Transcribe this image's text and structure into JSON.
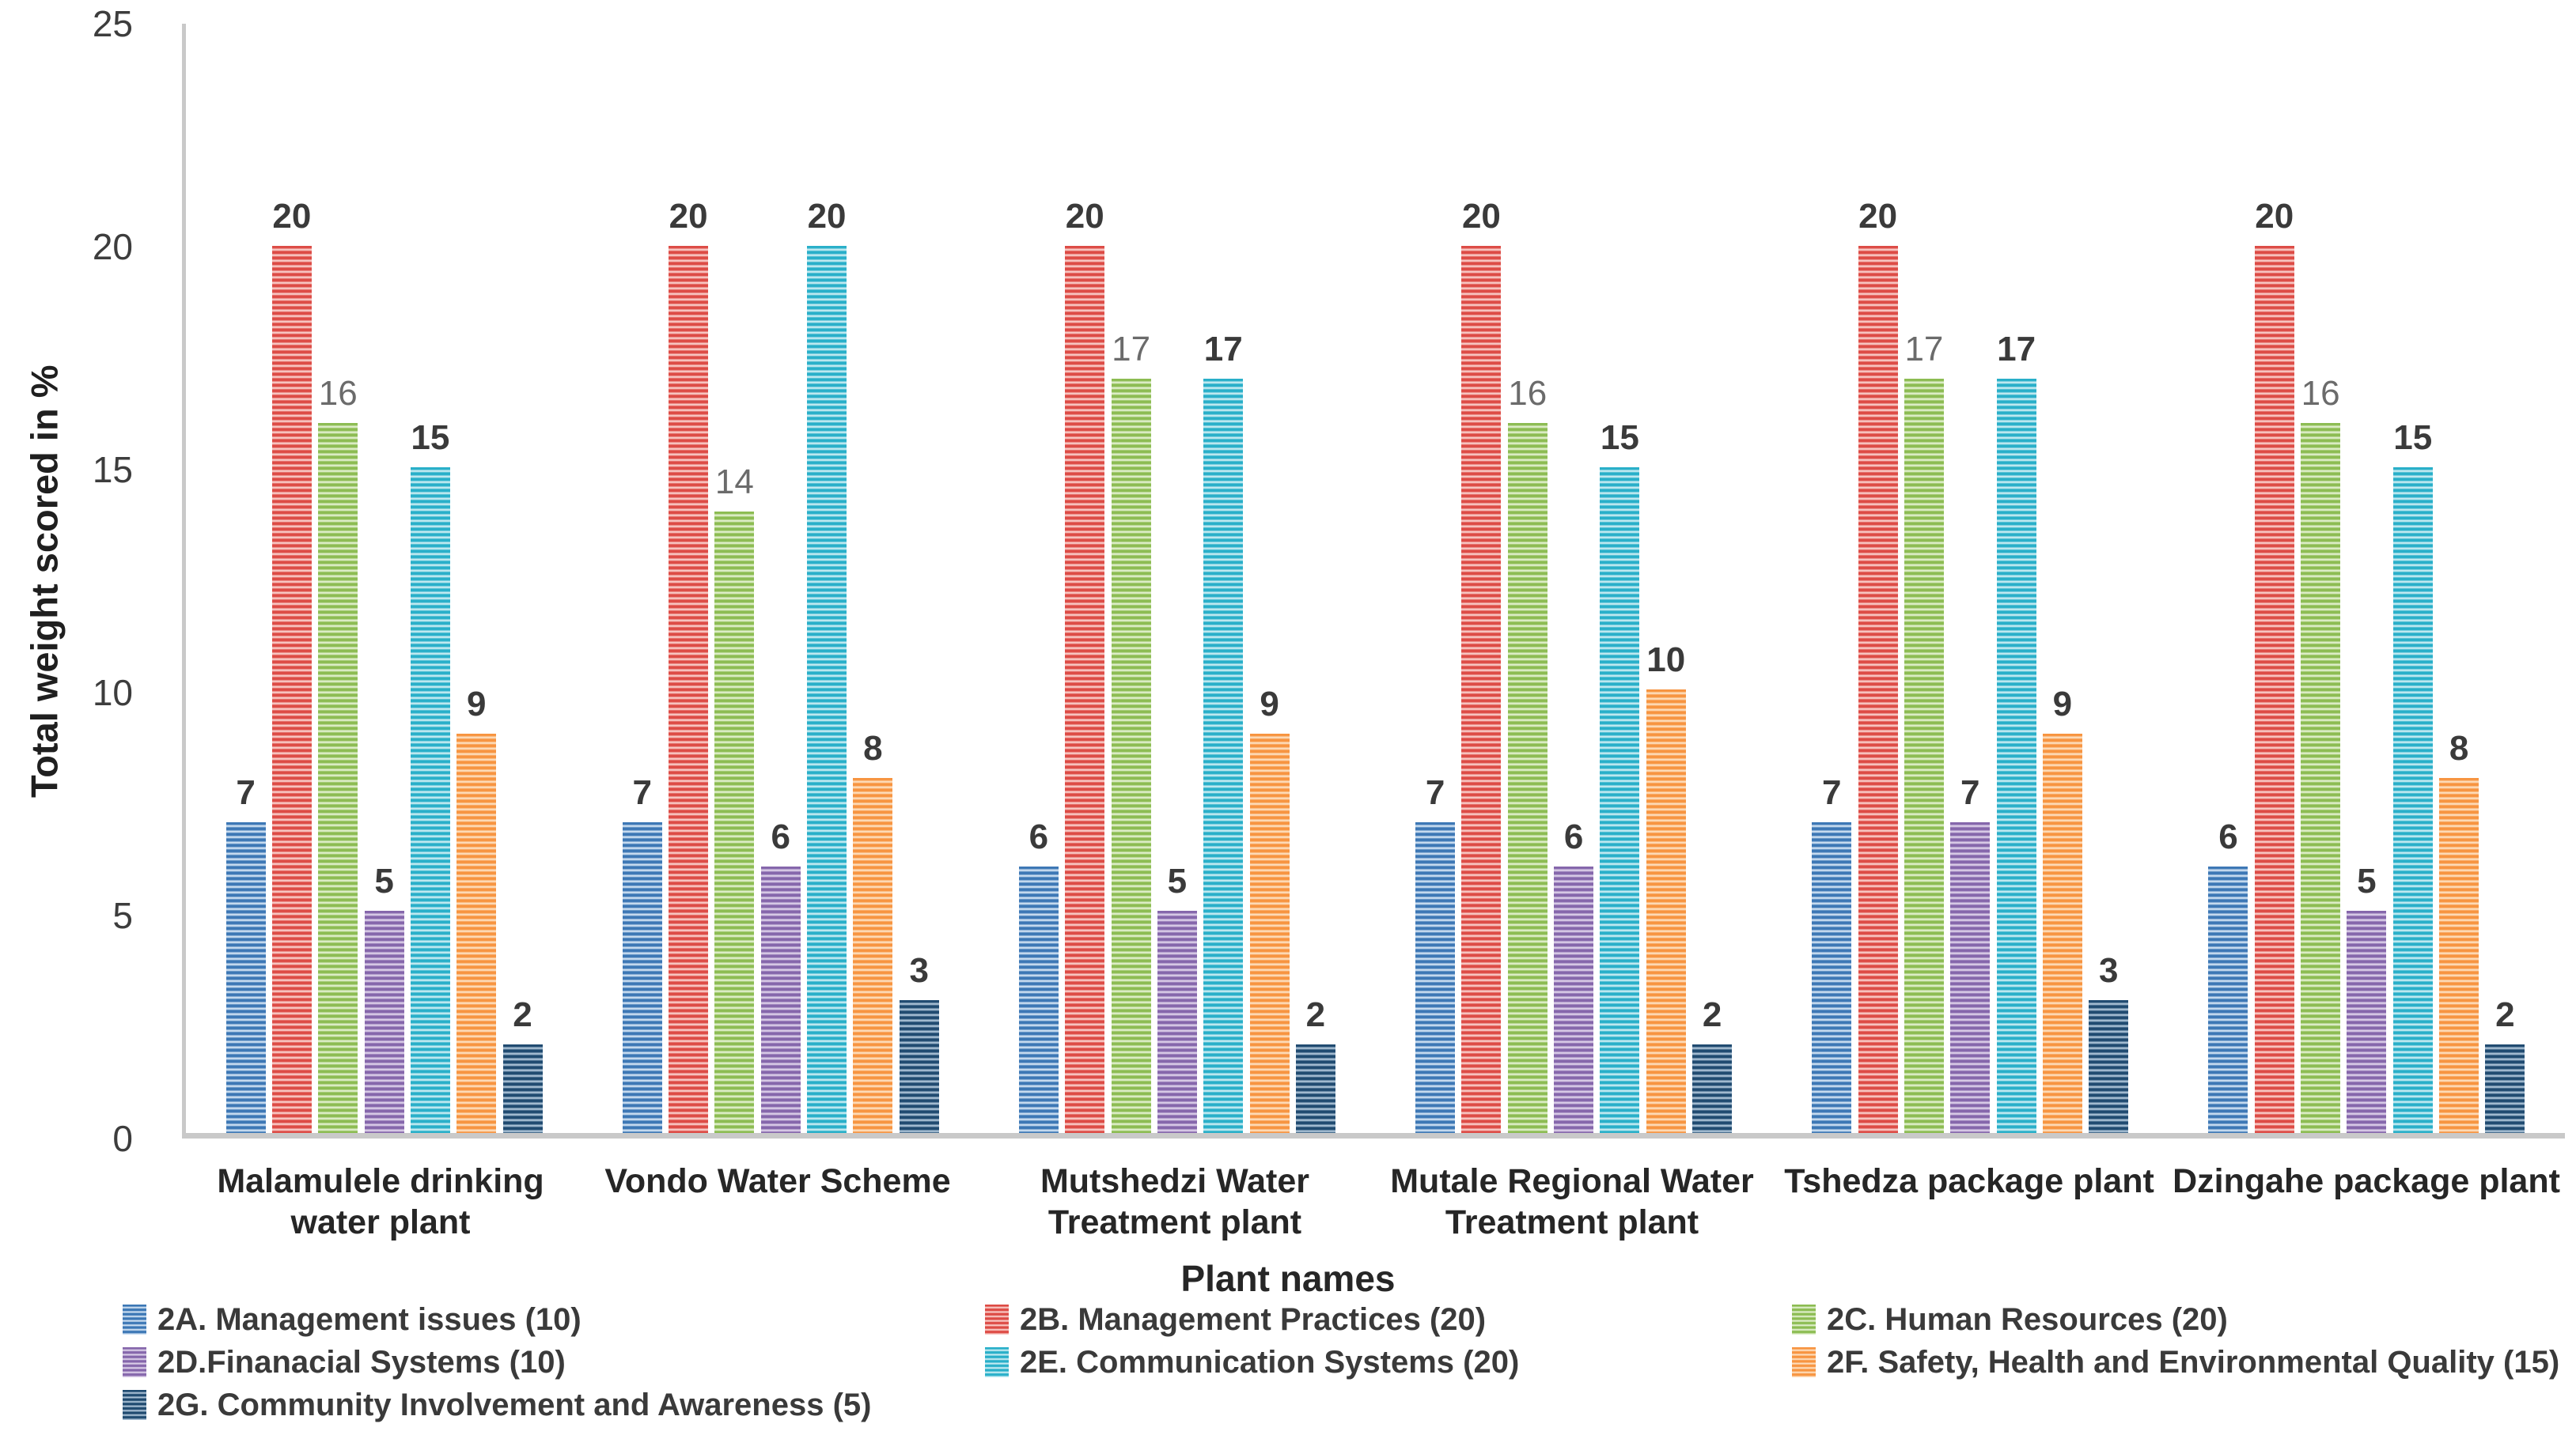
{
  "chart_data": {
    "type": "bar",
    "xlabel": "Plant names",
    "ylabel": "Total weight scored in %",
    "ylim": [
      0,
      25
    ],
    "yticks": [
      0,
      5,
      10,
      15,
      20,
      25
    ],
    "grid": false,
    "legend_position": "bottom",
    "axis_color": "#C9C9C9",
    "bar_pattern": "horizontal-stripes",
    "categories": [
      "Malamulele drinking water plant",
      "Vondo Water Scheme",
      "Mutshedzi Water Treatment plant",
      "Mutale Regional Water Treatment plant",
      "Tshedza package plant",
      "Dzingahe package plant"
    ],
    "category_lines": [
      [
        "Malamulele drinking",
        "water plant"
      ],
      [
        "Vondo Water Scheme"
      ],
      [
        "Mutshedzi Water",
        "Treatment plant"
      ],
      [
        "Mutale Regional Water",
        "Treatment plant"
      ],
      [
        "Tshedza package plant"
      ],
      [
        "Dzingahe package plant"
      ]
    ],
    "series": [
      {
        "name": "2A. Management issues (10)",
        "color": "#3C77B5",
        "color_light": "#CADDF0",
        "values": [
          7,
          7,
          6,
          7,
          7,
          6
        ]
      },
      {
        "name": "2B. Management Practices (20)",
        "color": "#DD4B45",
        "color_light": "#F8C8C4",
        "values": [
          20,
          20,
          20,
          20,
          20,
          20
        ]
      },
      {
        "name": "2C. Human Resources (20)",
        "color": "#8CBC52",
        "color_light": "#DEEEC9",
        "label_color": "#6B6B6B",
        "label_weight": "400",
        "values": [
          16,
          14,
          17,
          16,
          17,
          16
        ]
      },
      {
        "name": "2D.Finanacial Systems (10)",
        "color": "#8566AB",
        "color_light": "#D9CCE7",
        "values": [
          5,
          6,
          5,
          6,
          7,
          5
        ]
      },
      {
        "name": "2E. Communication Systems (20)",
        "color": "#28AFC9",
        "color_light": "#C3EAF1",
        "values": [
          15,
          20,
          17,
          15,
          17,
          15
        ]
      },
      {
        "name": "2F. Safety, Health and Environmental Quality (15)",
        "color": "#F79440",
        "color_light": "#FDDCBA",
        "values": [
          9,
          8,
          9,
          10,
          9,
          8
        ]
      },
      {
        "name": "2G. Community Involvement and Awareness (5)",
        "color": "#1F4A70",
        "color_light": "#A6BED3",
        "values": [
          2,
          3,
          2,
          2,
          3,
          2
        ]
      }
    ],
    "legend_rows": [
      [
        0,
        1,
        2
      ],
      [
        3,
        4,
        5
      ],
      [
        6
      ]
    ]
  }
}
